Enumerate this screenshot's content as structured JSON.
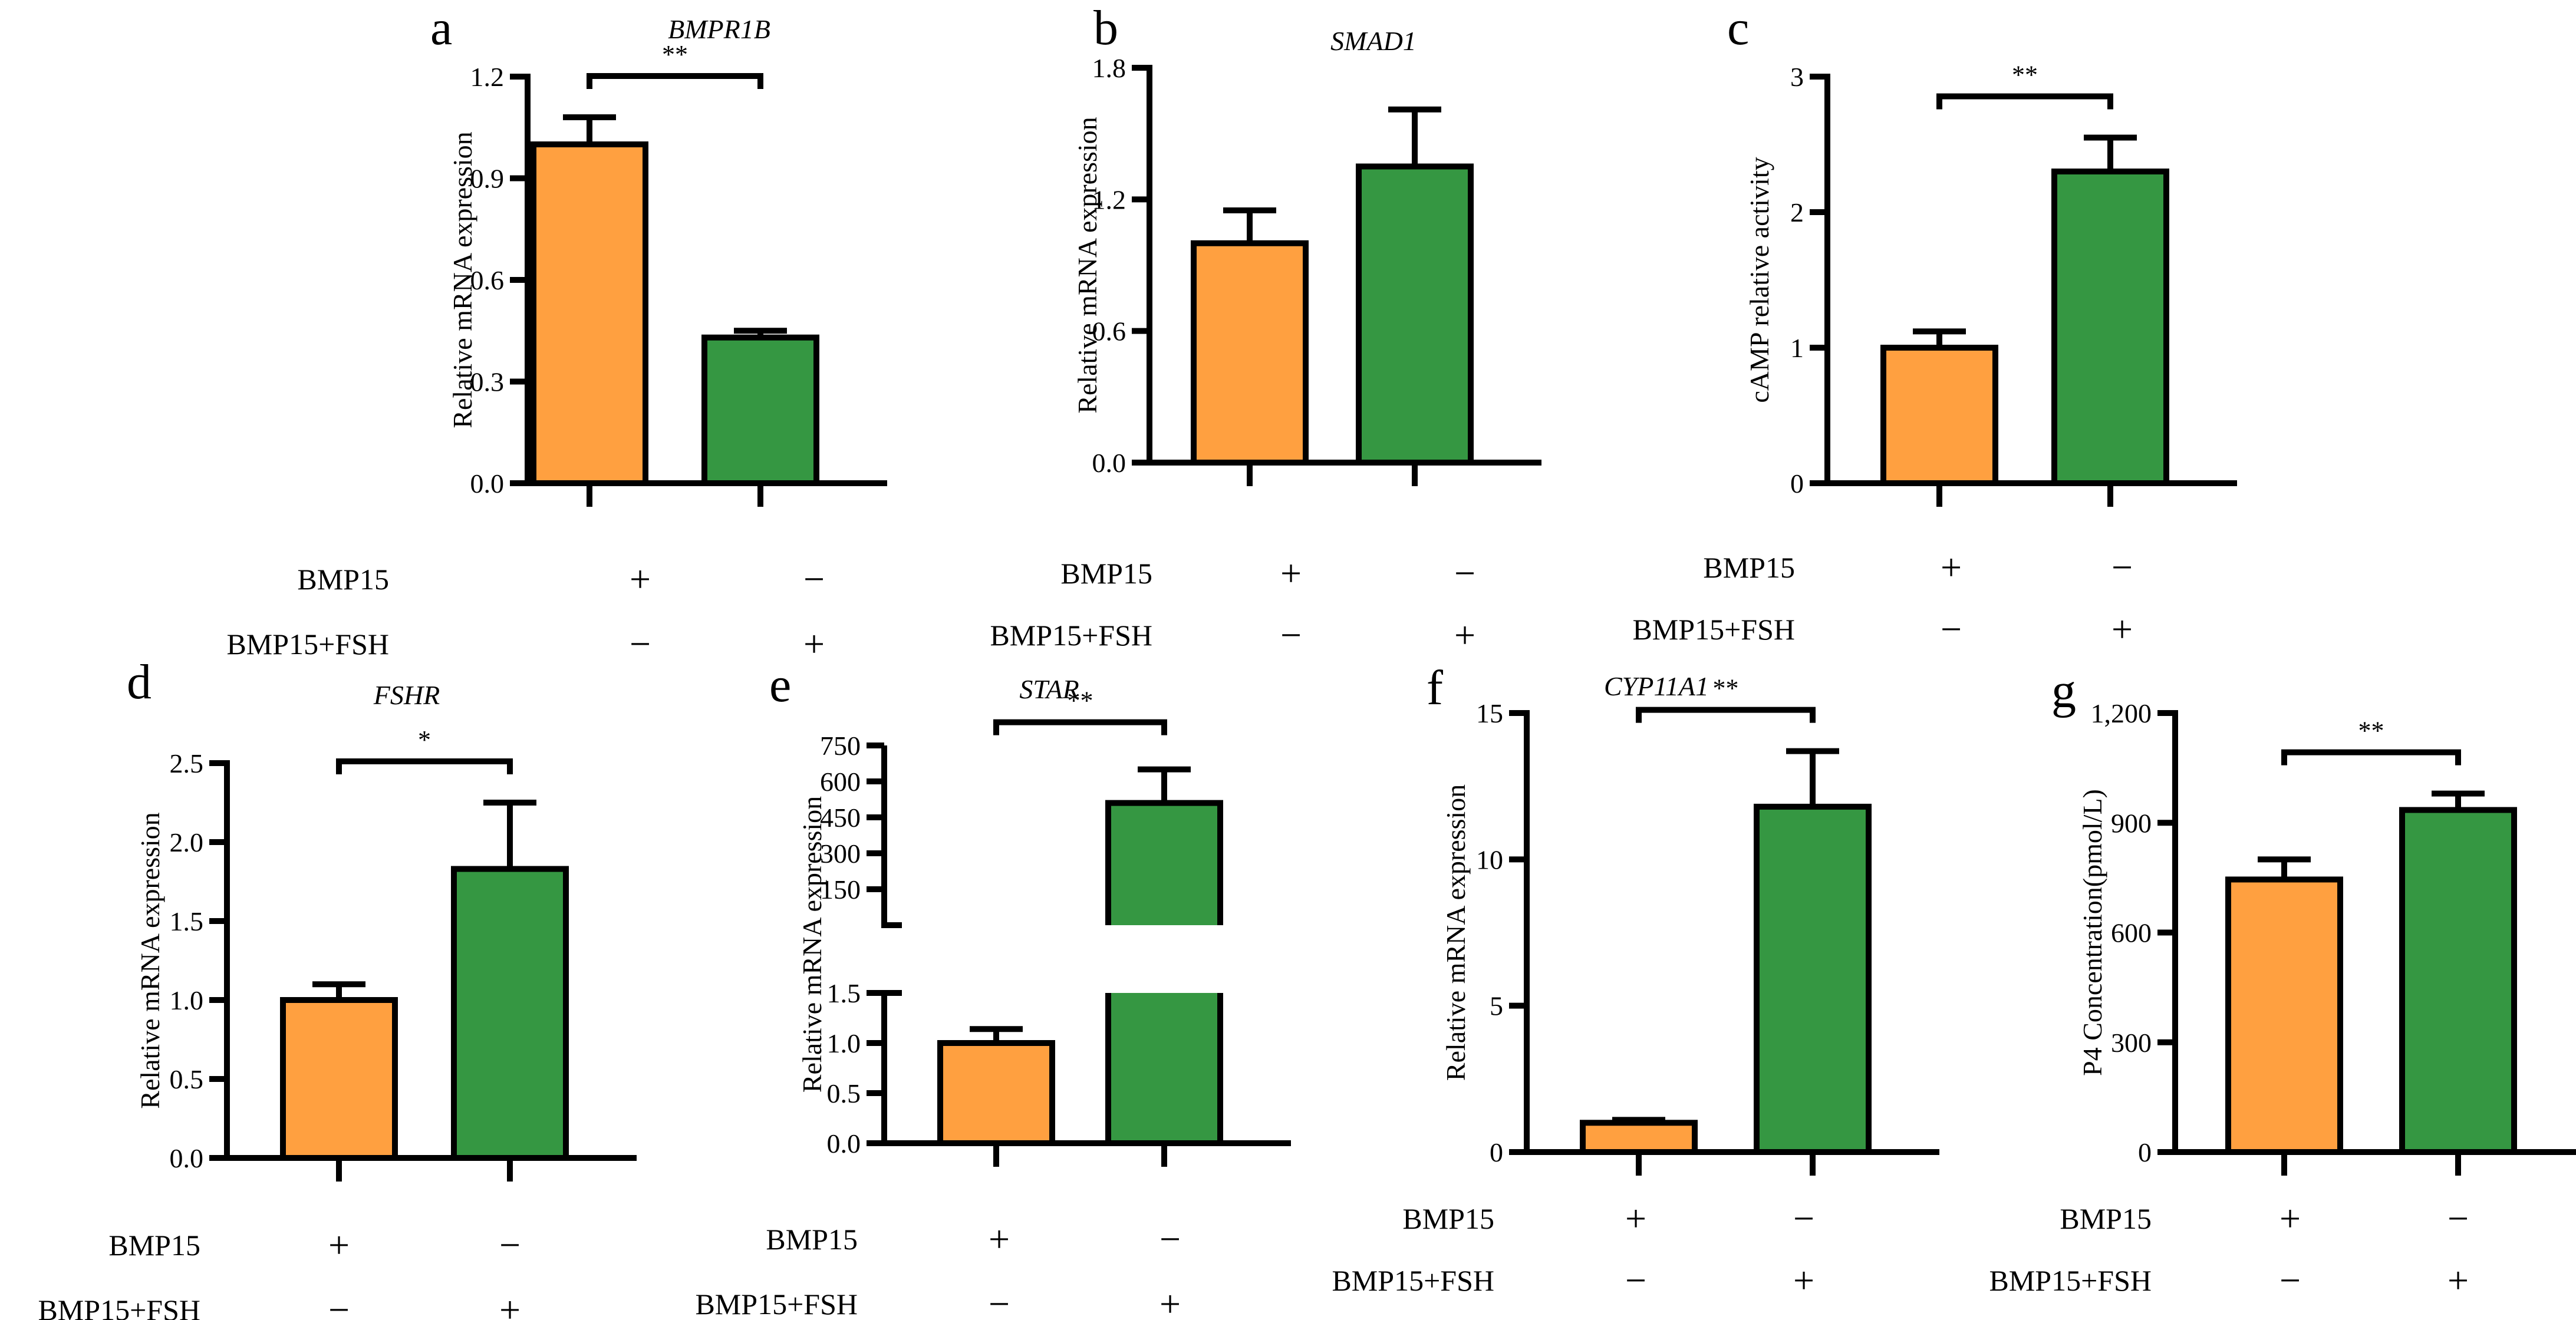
{
  "colors": {
    "orange": "#FFA040",
    "green": "#359742",
    "axis": "#000000"
  },
  "conditions": {
    "row1_label": "BMP15",
    "row2_label": "BMP15+FSH",
    "row1_signs": [
      "+",
      "−"
    ],
    "row2_signs": [
      "−",
      "+"
    ]
  },
  "chart_data": [
    {
      "panel": "a",
      "type": "bar",
      "title": "BMPR1B",
      "ylabel": "Relative mRNA expression",
      "categories": [
        "BMP15",
        "BMP15+FSH"
      ],
      "values": [
        1.0,
        0.43
      ],
      "errors": [
        0.08,
        0.02
      ],
      "ylim": [
        0,
        1.2
      ],
      "yticks": [
        0.0,
        0.3,
        0.6,
        0.9,
        1.2
      ],
      "ytick_labels": [
        "0.0",
        "0.3",
        "0.6",
        "0.9",
        "1.2"
      ],
      "significance": "**",
      "grid": false
    },
    {
      "panel": "b",
      "type": "bar",
      "title": "SMAD1",
      "ylabel": "Relative mRNA expression",
      "categories": [
        "BMP15",
        "BMP15+FSH"
      ],
      "values": [
        1.0,
        1.35
      ],
      "errors": [
        0.15,
        0.26
      ],
      "ylim": [
        0,
        1.8
      ],
      "yticks": [
        0.0,
        0.6,
        1.2,
        1.8
      ],
      "ytick_labels": [
        "0.0",
        "0.6",
        "1.2",
        "1.8"
      ],
      "significance": "",
      "grid": false
    },
    {
      "panel": "c",
      "type": "bar",
      "title": "",
      "ylabel": "cAMP relative activity",
      "categories": [
        "BMP15",
        "BMP15+FSH"
      ],
      "values": [
        1.0,
        2.3
      ],
      "errors": [
        0.12,
        0.25
      ],
      "ylim": [
        0,
        3
      ],
      "yticks": [
        0,
        1,
        2,
        3
      ],
      "ytick_labels": [
        "0",
        "1",
        "2",
        "3"
      ],
      "significance": "**",
      "grid": false
    },
    {
      "panel": "d",
      "type": "bar",
      "title": "FSHR",
      "ylabel": "Relative mRNA expression",
      "categories": [
        "BMP15",
        "BMP15+FSH"
      ],
      "values": [
        1.0,
        1.83
      ],
      "errors": [
        0.1,
        0.42
      ],
      "ylim": [
        0,
        2.5
      ],
      "yticks": [
        0.0,
        0.5,
        1.0,
        1.5,
        2.0,
        2.5
      ],
      "ytick_labels": [
        "0.0",
        "0.5",
        "1.0",
        "1.5",
        "2.0",
        "2.5"
      ],
      "significance": "*",
      "grid": false
    },
    {
      "panel": "e",
      "type": "bar",
      "title": "STAR",
      "ylabel": "Relative mRNA expression",
      "categories": [
        "BMP15",
        "BMP15+FSH"
      ],
      "values": [
        1.0,
        510
      ],
      "errors": [
        0.14,
        140
      ],
      "broken_axis": true,
      "ylim_lower": [
        0,
        1.5
      ],
      "yticks_lower": [
        0.0,
        0.5,
        1.0,
        1.5
      ],
      "ytick_labels_lower": [
        "0.0",
        "0.5",
        "1.0",
        "1.5"
      ],
      "ylim_upper": [
        0,
        750
      ],
      "yticks_upper": [
        150,
        300,
        450,
        600,
        750
      ],
      "ytick_labels_upper": [
        "150",
        "300",
        "450",
        "600",
        "750"
      ],
      "significance": "**",
      "grid": false
    },
    {
      "panel": "f",
      "type": "bar",
      "title": "CYP11A1",
      "ylabel": "Relative mRNA expression",
      "categories": [
        "BMP15",
        "BMP15+FSH"
      ],
      "values": [
        1.0,
        11.8
      ],
      "errors": [
        0.1,
        1.9
      ],
      "ylim": [
        0,
        15
      ],
      "yticks": [
        0,
        5,
        10,
        15
      ],
      "ytick_labels": [
        "0",
        "5",
        "10",
        "15"
      ],
      "significance": "**",
      "grid": false
    },
    {
      "panel": "g",
      "type": "bar",
      "title": "",
      "ylabel": "P4 Concentration(pmol/L)",
      "categories": [
        "BMP15",
        "BMP15+FSH"
      ],
      "values": [
        745,
        935
      ],
      "errors": [
        55,
        45
      ],
      "ylim": [
        0,
        1200
      ],
      "yticks": [
        0,
        300,
        600,
        900,
        1200
      ],
      "ytick_labels": [
        "0",
        "300",
        "600",
        "900",
        "1,200"
      ],
      "significance": "**",
      "grid": false
    }
  ]
}
